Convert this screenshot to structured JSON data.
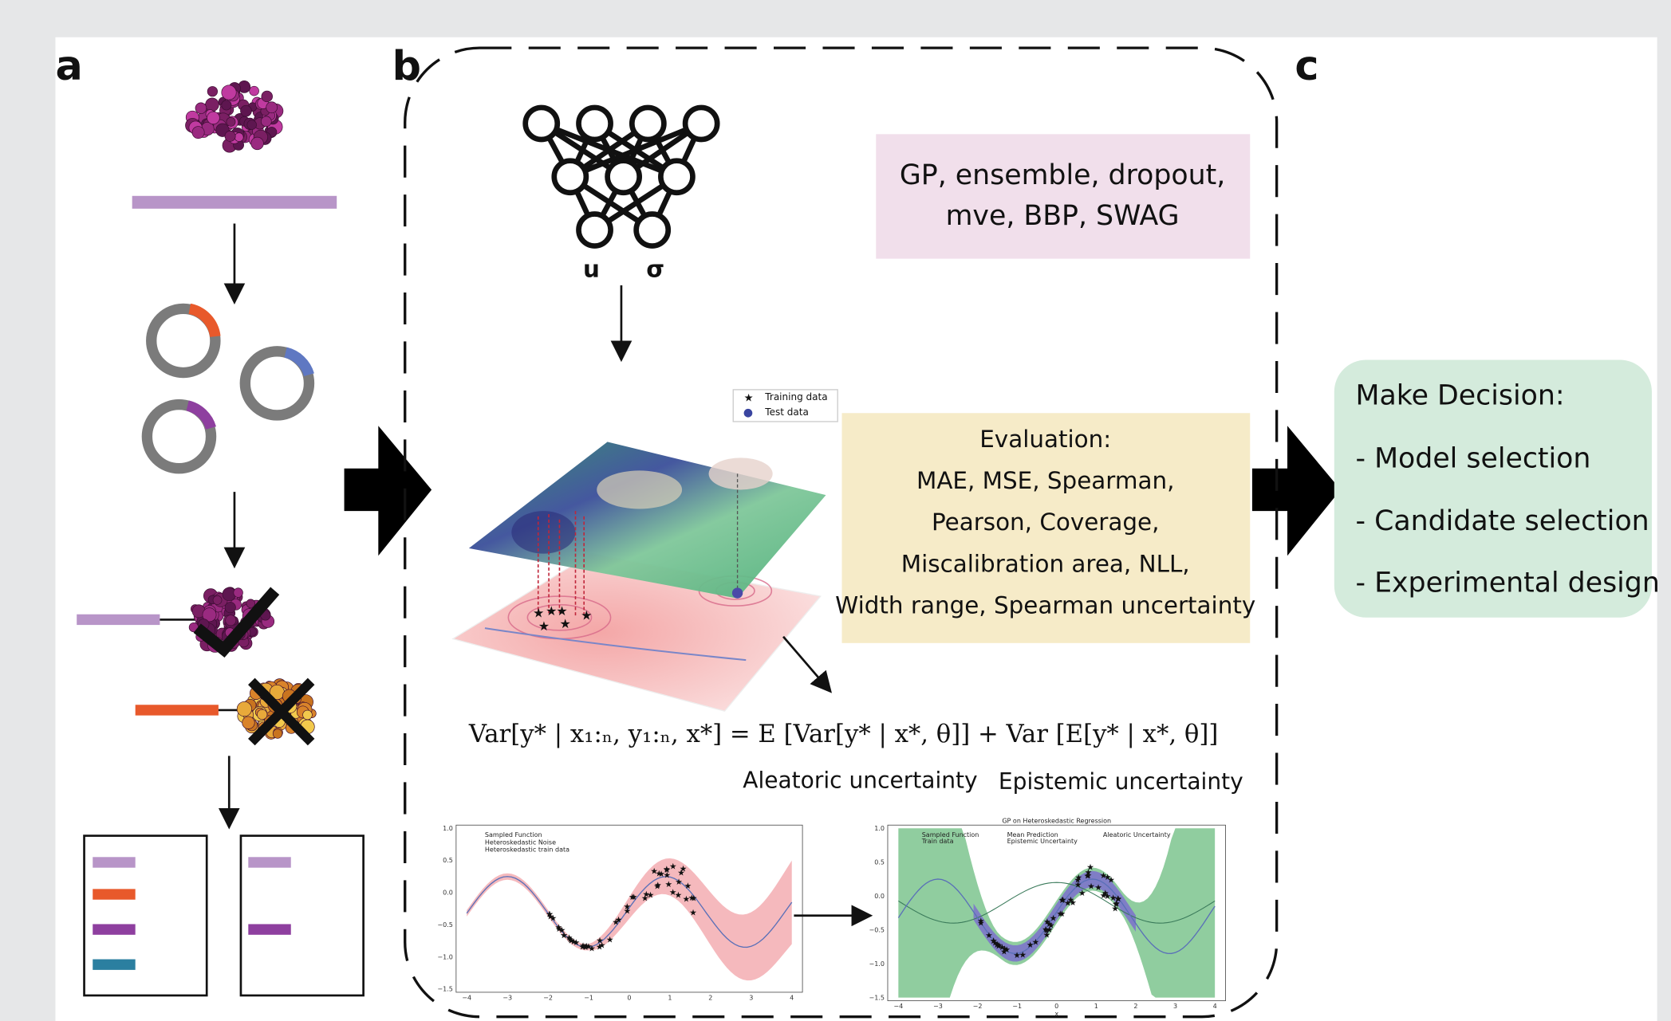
{
  "panel_labels": [
    "a",
    "b",
    "c"
  ],
  "methods_box": {
    "lines": [
      "GP, ensemble, dropout,",
      "mve, BBP, SWAG"
    ]
  },
  "network_outputs": [
    "u",
    "σ"
  ],
  "surface_legend": [
    "Training data",
    "Test data"
  ],
  "evaluation_box": {
    "lines": [
      "Evaluation:",
      "MAE, MSE, Spearman,",
      "Pearson, Coverage,",
      "Miscalibration area, NLL,",
      "Width range, Spearman uncertainty"
    ]
  },
  "equation": "Var[y* | x₁:ₙ, y₁:ₙ, x*] = E [Var[y* | x*, θ]] + Var [E[y* | x*, θ]]",
  "uncertainty_labels": [
    "Aleatoric uncertainty",
    "Epistemic uncertainty"
  ],
  "decision_box": {
    "title": "Make Decision:",
    "items": [
      "- Model selection",
      "- Candidate selection",
      "- Experimental design"
    ]
  },
  "left_plot": {
    "legend": [
      "Sampled Function",
      "Heteroskedastic Noise",
      "Heteroskedastic train data"
    ],
    "xticks": [
      "−4",
      "−3",
      "−2",
      "−1",
      "0",
      "1",
      "2",
      "3",
      "4"
    ],
    "yticks": [
      "1.0",
      "0.5",
      "0.0",
      "−0.5",
      "−1.0",
      "−1.5"
    ]
  },
  "right_plot": {
    "title": "GP on Heteroskedastic Regression",
    "legend": [
      "Sampled Function",
      "Train data",
      "Mean Prediction",
      "Epistemic Uncertainty",
      "Aleatoric Uncertainty"
    ],
    "xticks": [
      "−4",
      "−3",
      "−2",
      "−1",
      "0",
      "1",
      "2",
      "3",
      "4"
    ],
    "yticks": [
      "1.0",
      "0.5",
      "0.0",
      "−0.5",
      "−1.0",
      "−1.5"
    ],
    "xlabel": "x"
  }
}
